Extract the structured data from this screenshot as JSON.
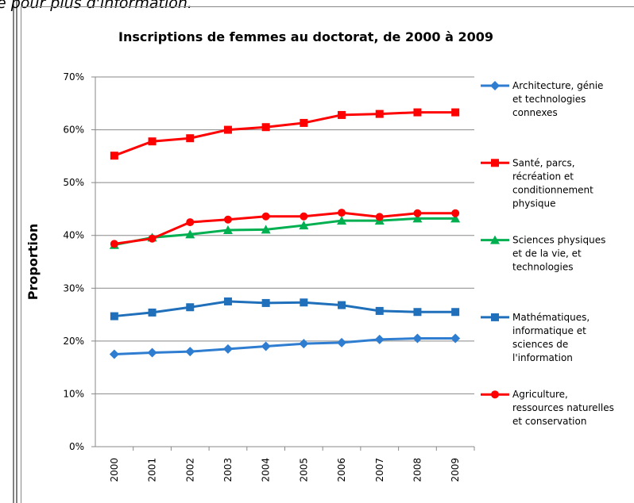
{
  "page_fragment": "e pour plus d'information.",
  "chart_data": {
    "type": "line",
    "title": "Inscriptions de femmes au doctorat, de 2000 à 2009",
    "y_label": "Proportion",
    "categories": [
      "2000",
      "2001",
      "2002",
      "2003",
      "2004",
      "2005",
      "2006",
      "2007",
      "2008",
      "2009"
    ],
    "ylim": [
      0,
      70
    ],
    "yticks": [
      {
        "value": 0,
        "label": "0%"
      },
      {
        "value": 10,
        "label": "10%"
      },
      {
        "value": 20,
        "label": "20%"
      },
      {
        "value": 30,
        "label": "30%"
      },
      {
        "value": 40,
        "label": "40%"
      },
      {
        "value": 50,
        "label": "50%"
      },
      {
        "value": 60,
        "label": "60%"
      },
      {
        "value": 70,
        "label": "70%"
      }
    ],
    "grid": true,
    "legend": "right",
    "series": [
      {
        "name": "Architecture, génie et technologies connexes",
        "color": "#2e7dd1",
        "marker": "diamond",
        "values": [
          17.5,
          17.8,
          18.0,
          18.5,
          19.0,
          19.5,
          19.7,
          20.3,
          20.5,
          20.5
        ]
      },
      {
        "name": "Santé, parcs, récréation et conditionnement physique",
        "color": "#ff0000",
        "marker": "square",
        "values": [
          55.1,
          57.8,
          58.4,
          60.0,
          60.5,
          61.3,
          62.8,
          63.0,
          63.3,
          63.3
        ]
      },
      {
        "name": "Sciences physiques et de la vie, et technologies",
        "color": "#00b050",
        "marker": "triangle",
        "values": [
          38.2,
          39.6,
          40.2,
          41.0,
          41.1,
          41.9,
          42.8,
          42.8,
          43.2,
          43.2
        ]
      },
      {
        "name": "Mathématiques, informatique et sciences de l'information",
        "color": "#1f6fba",
        "marker": "square",
        "values": [
          24.7,
          25.4,
          26.4,
          27.5,
          27.2,
          27.3,
          26.8,
          25.7,
          25.5,
          25.5
        ]
      },
      {
        "name": "Agriculture, ressources naturelles et conservation",
        "color": "#ff0000",
        "marker": "circle",
        "values": [
          38.4,
          39.4,
          42.5,
          43.0,
          43.6,
          43.6,
          44.3,
          43.5,
          44.2,
          44.2
        ]
      }
    ]
  }
}
